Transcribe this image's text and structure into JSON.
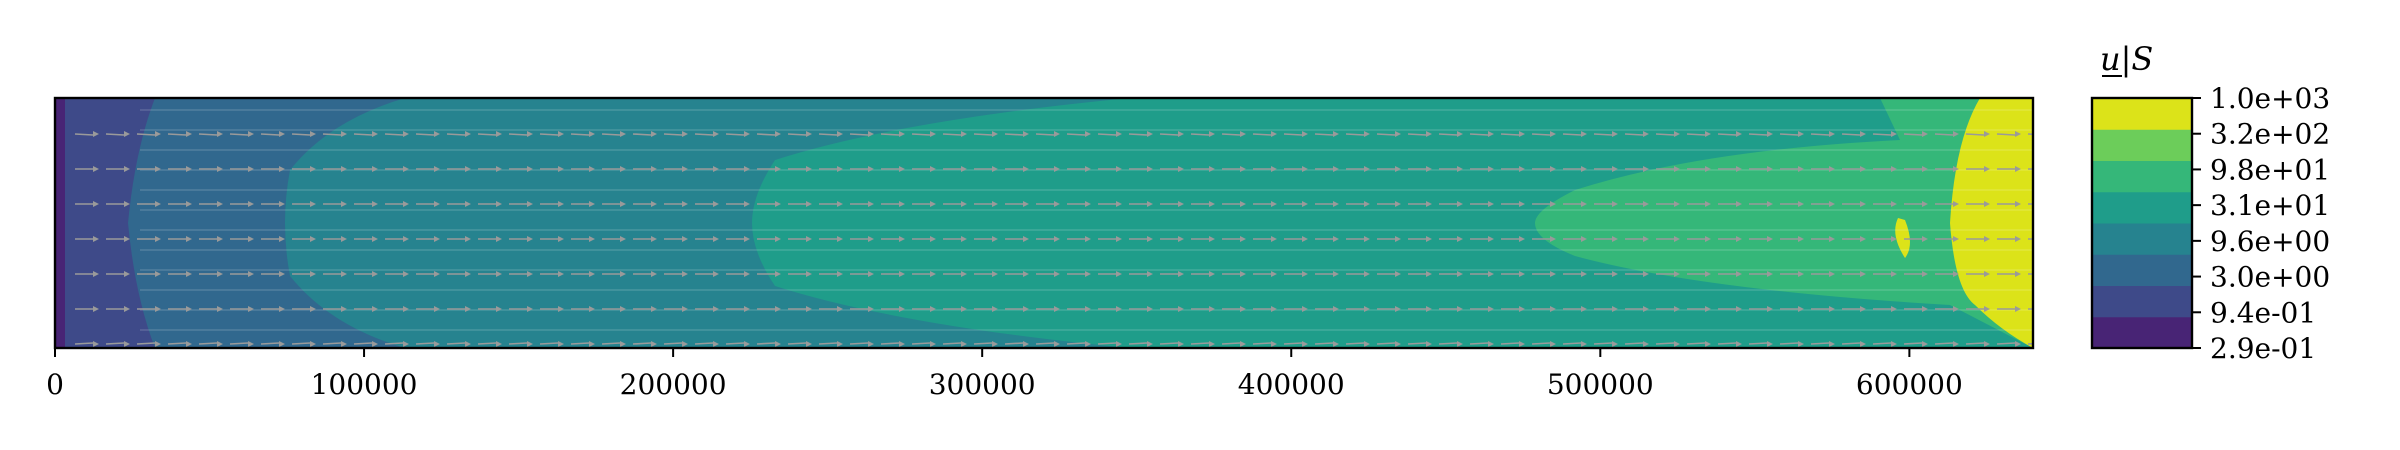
{
  "chart_data": {
    "type": "heatmap",
    "title": "",
    "xlabel": "",
    "ylabel": "",
    "xlim": [
      0,
      640000
    ],
    "x_ticks": [
      0,
      100000,
      200000,
      300000,
      400000,
      500000,
      600000
    ],
    "x_tick_labels": [
      "0",
      "100000",
      "200000",
      "300000",
      "400000",
      "500000",
      "600000"
    ],
    "y_ticks_shown": false,
    "colorbar": {
      "title": "u|S",
      "scale": "log",
      "levels": [
        0.29,
        0.94,
        3.0,
        9.6,
        31,
        98,
        320,
        1000
      ],
      "level_labels": [
        "2.9e-01",
        "9.4e-01",
        "3.0e+00",
        "9.6e+00",
        "3.1e+01",
        "9.8e+01",
        "3.2e+02",
        "1.0e+03"
      ],
      "colors": [
        "#482475",
        "#3e4a89",
        "#31688e",
        "#26838f",
        "#1f9d8a",
        "#35b779",
        "#6ccd5a",
        "#dce319"
      ]
    },
    "contour_bands_x_at_center": [
      {
        "band": 0,
        "x_end": 5000
      },
      {
        "band": 1,
        "x_end": 23000
      },
      {
        "band": 2,
        "x_end": 73000
      },
      {
        "band": 3,
        "x_end": 226000
      },
      {
        "band": 4,
        "x_end": 478000
      },
      {
        "band": 5,
        "x_end": 612000
      },
      {
        "band": 6,
        "x_end": 640000
      }
    ],
    "vector_field": {
      "direction": "+x",
      "arrow_color": "#9a9a9a",
      "rows": 7,
      "columns": 64
    }
  }
}
